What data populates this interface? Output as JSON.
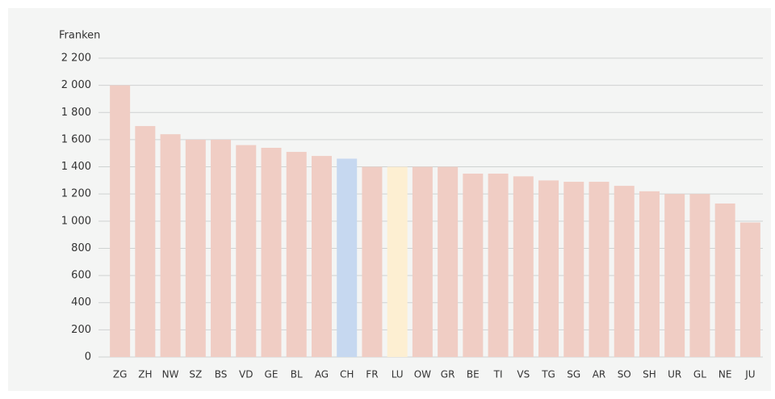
{
  "chart_data": {
    "type": "bar",
    "y_axis_label": "Franken",
    "categories": [
      "ZG",
      "ZH",
      "NW",
      "SZ",
      "BS",
      "VD",
      "GE",
      "BL",
      "AG",
      "CH",
      "FR",
      "LU",
      "OW",
      "GR",
      "BE",
      "TI",
      "VS",
      "TG",
      "SG",
      "AR",
      "SO",
      "SH",
      "UR",
      "GL",
      "NE",
      "JU"
    ],
    "values": [
      2000,
      1700,
      1640,
      1600,
      1600,
      1560,
      1540,
      1510,
      1480,
      1460,
      1400,
      1400,
      1400,
      1400,
      1350,
      1350,
      1330,
      1300,
      1290,
      1290,
      1260,
      1220,
      1200,
      1200,
      1130,
      990
    ],
    "colors": [
      "#f0cdc4",
      "#f0cdc4",
      "#f0cdc4",
      "#f0cdc4",
      "#f0cdc4",
      "#f0cdc4",
      "#f0cdc4",
      "#f0cdc4",
      "#f0cdc4",
      "#c6d8f0",
      "#f0cdc4",
      "#fdefd2",
      "#f0cdc4",
      "#f0cdc4",
      "#f0cdc4",
      "#f0cdc4",
      "#f0cdc4",
      "#f0cdc4",
      "#f0cdc4",
      "#f0cdc4",
      "#f0cdc4",
      "#f0cdc4",
      "#f0cdc4",
      "#f0cdc4",
      "#f0cdc4",
      "#f0cdc4"
    ],
    "ylim": [
      0,
      2200
    ],
    "yticks": [
      0,
      200,
      400,
      600,
      800,
      {
        "value": 1000,
        "label": "1 000"
      },
      {
        "value": 1200,
        "label": "1 200"
      },
      {
        "value": 1400,
        "label": "1 400"
      },
      {
        "value": 1600,
        "label": "1 600"
      },
      {
        "value": 1800,
        "label": "1 800"
      },
      {
        "value": 2000,
        "label": "2 000"
      },
      {
        "value": 2200,
        "label": "2 200"
      }
    ],
    "grid": true
  }
}
